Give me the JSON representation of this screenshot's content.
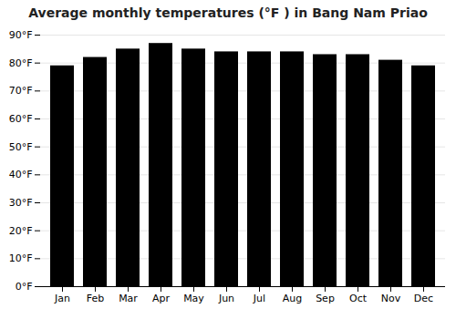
{
  "chart_data": {
    "type": "bar",
    "title": "Average monthly temperatures (°F ) in Bang Nam Priao",
    "categories": [
      "Jan",
      "Feb",
      "Mar",
      "Apr",
      "May",
      "Jun",
      "Jul",
      "Aug",
      "Sep",
      "Oct",
      "Nov",
      "Dec"
    ],
    "values": [
      79,
      82,
      85,
      87,
      85,
      84,
      84,
      84,
      83,
      83,
      81,
      79
    ],
    "ylim": [
      0,
      90
    ],
    "yticks": [
      {
        "value": 0,
        "label": "0°F"
      },
      {
        "value": 10,
        "label": "10°F"
      },
      {
        "value": 20,
        "label": "20°F"
      },
      {
        "value": 30,
        "label": "30°F"
      },
      {
        "value": 40,
        "label": "40°F"
      },
      {
        "value": 50,
        "label": "50°F"
      },
      {
        "value": 60,
        "label": "60°F"
      },
      {
        "value": 70,
        "label": "70°F"
      },
      {
        "value": 80,
        "label": "80°F"
      },
      {
        "value": 90,
        "label": "90°F"
      }
    ],
    "grid": true
  }
}
